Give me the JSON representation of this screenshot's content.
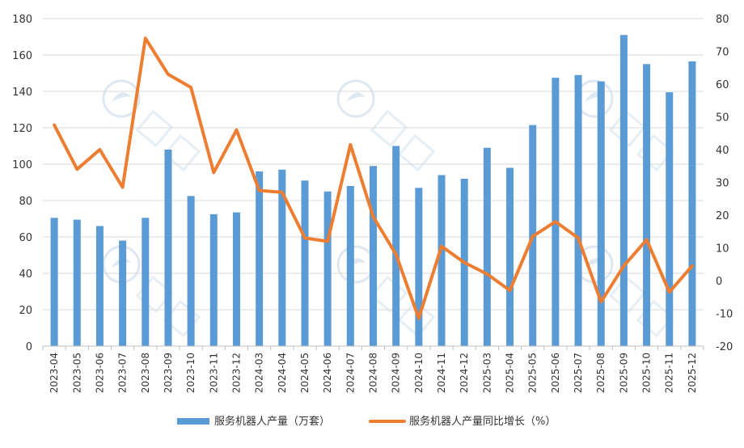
{
  "chart_data": {
    "type": "bar+line",
    "title": "",
    "categories": [
      "2023-04",
      "2023-05",
      "2023-06",
      "2023-07",
      "2023-08",
      "2023-09",
      "2023-10",
      "2023-11",
      "2023-12",
      "2024-03",
      "2024-04",
      "2024-05",
      "2024-06",
      "2024-07",
      "2024-08",
      "2024-09",
      "2024-10",
      "2024-11",
      "2024-12",
      "2025-03",
      "2025-04",
      "2025-05",
      "2025-06",
      "2025-07",
      "2025-08",
      "2025-09",
      "2025-10",
      "2025-11",
      "2025-12"
    ],
    "series": [
      {
        "name": "服务机器人产量（万套）",
        "type": "bar",
        "axis": "left",
        "color": "#5b9bd5",
        "values": [
          70.5,
          69.5,
          66,
          58,
          70.5,
          108,
          82.5,
          72.5,
          73.5,
          96,
          97,
          91,
          85,
          88,
          99,
          110,
          87,
          94,
          92,
          109,
          98,
          121.5,
          147.5,
          149,
          145.5,
          171,
          155,
          139.5,
          156.5
        ]
      },
      {
        "name": "服务机器人产量同比增长（%）",
        "type": "line",
        "axis": "right",
        "color": "#ed7d31",
        "values": [
          47.5,
          34,
          40,
          28.5,
          74,
          63,
          59,
          33,
          46,
          27.5,
          27,
          13,
          12,
          41.5,
          19.5,
          8,
          -11.5,
          10.5,
          5.5,
          2,
          -3,
          13.5,
          18,
          13,
          -6.5,
          4.5,
          12.5,
          -3.5,
          4.5
        ]
      }
    ],
    "ylim_left": [
      0,
      180
    ],
    "yticks_left": [
      0,
      20,
      40,
      60,
      80,
      100,
      120,
      140,
      160,
      180
    ],
    "ylim_right": [
      -20,
      80
    ],
    "yticks_right": [
      -20,
      -10,
      0,
      10,
      20,
      30,
      40,
      50,
      60,
      70,
      80
    ],
    "legend_position": "bottom-center",
    "grid": true
  }
}
